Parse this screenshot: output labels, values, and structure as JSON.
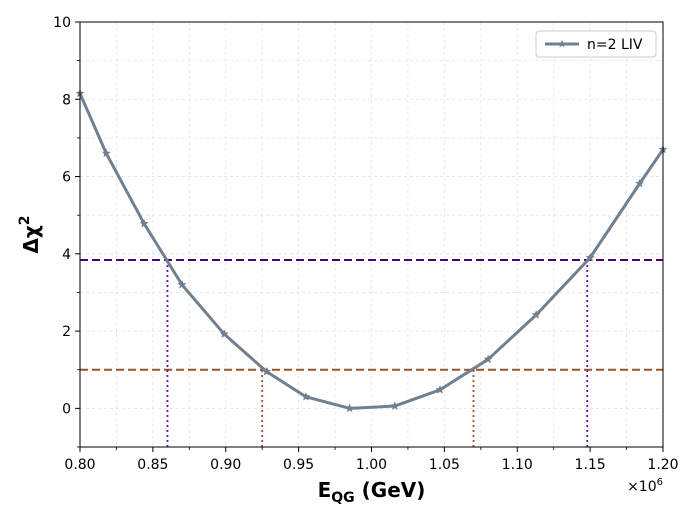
{
  "chart_data": {
    "type": "line",
    "xlabel": "E",
    "xlabel_sub": "QG",
    "xlabel_suffix": " (GeV)",
    "ylabel": "Δχ",
    "ylabel_sup": "2",
    "xlim": [
      800000,
      1200000
    ],
    "ylim": [
      -1,
      10
    ],
    "x_ticks": [
      800000,
      850000,
      900000,
      950000,
      1000000,
      1050000,
      1100000,
      1150000,
      1200000
    ],
    "x_tick_labels": [
      "0.80",
      "0.85",
      "0.90",
      "0.95",
      "1.00",
      "1.05",
      "1.10",
      "1.15",
      "1.20"
    ],
    "x_multiplier": "×10",
    "x_multiplier_exp": "6",
    "y_ticks": [
      0,
      2,
      4,
      6,
      8,
      10
    ],
    "y_tick_labels": [
      "0",
      "2",
      "4",
      "6",
      "8",
      "10"
    ],
    "grid": true,
    "legend": {
      "location": "top-right",
      "entries": [
        "n=2 LIV"
      ]
    },
    "series": [
      {
        "name": "n=2 LIV",
        "color": "#708090",
        "marker": "star",
        "x": [
          800000,
          818000,
          844000,
          870000,
          899000,
          928000,
          955000,
          985000,
          1016000,
          1047000,
          1080000,
          1113000,
          1150000,
          1184000,
          1200000
        ],
        "y": [
          8.15,
          6.6,
          4.78,
          3.2,
          1.92,
          0.95,
          0.3,
          0.0,
          0.06,
          0.48,
          1.27,
          2.42,
          3.9,
          5.82,
          6.7
        ]
      }
    ],
    "reference_lines": [
      {
        "type": "horizontal",
        "y": 3.84,
        "color": "#4B0082",
        "style": "dashed"
      },
      {
        "type": "horizontal",
        "y": 1.0,
        "color": "#A0522D",
        "style": "dashed"
      },
      {
        "type": "vertical",
        "x": 860000,
        "y_end": 3.84,
        "color": "#6A0DAD",
        "style": "dotted"
      },
      {
        "type": "vertical",
        "x": 1148000,
        "y_end": 3.84,
        "color": "#6A0DAD",
        "style": "dotted"
      },
      {
        "type": "vertical",
        "x": 925000,
        "y_end": 1.0,
        "color": "#A0522D",
        "style": "dotted"
      },
      {
        "type": "vertical",
        "x": 1070000,
        "y_end": 1.0,
        "color": "#A0522D",
        "style": "dotted"
      }
    ]
  }
}
